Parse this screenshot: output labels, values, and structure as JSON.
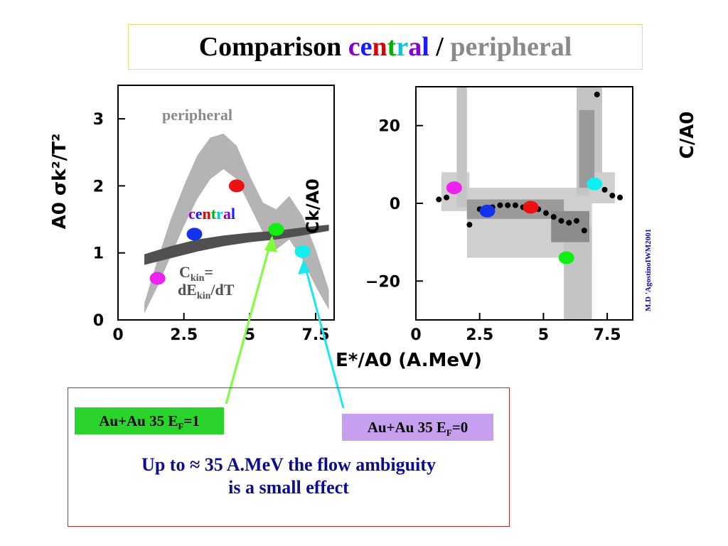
{
  "title": {
    "part1": "Comparison ",
    "central_letters": [
      {
        "ch": "c",
        "color": "#8800cc"
      },
      {
        "ch": "e",
        "color": "#1a1aff"
      },
      {
        "ch": "n",
        "color": "#e00000"
      },
      {
        "ch": "t",
        "color": "#00b000"
      },
      {
        "ch": "r",
        "color": "#00c8e0"
      },
      {
        "ch": "a",
        "color": "#8800cc"
      },
      {
        "ch": "l",
        "color": "#1a1aff"
      }
    ],
    "separator": " / ",
    "peripheral": "peripheral"
  },
  "colors": {
    "red": "#ee1111",
    "blue": "#1133ee",
    "green": "#11ee11",
    "cyan": "#11eeee",
    "magenta": "#ee22ee",
    "band": "#b4b4b4",
    "dark_band": "#505050"
  },
  "chart_data": [
    {
      "type": "scatter",
      "ylabel": "A0 σk²/T²",
      "xlim": [
        0,
        8.2
      ],
      "ylim": [
        0,
        3.5
      ],
      "xticks": [
        "0",
        "2.5",
        "5",
        "7.5"
      ],
      "yticks": [
        "0",
        "1",
        "2",
        "3"
      ],
      "annotations": {
        "peripheral": "peripheral",
        "central_letters": [
          {
            "ch": "c",
            "color": "#8800cc"
          },
          {
            "ch": "e",
            "color": "#1a1aff"
          },
          {
            "ch": "n",
            "color": "#e00000"
          },
          {
            "ch": "t",
            "color": "#00b000"
          },
          {
            "ch": "r",
            "color": "#00c8e0"
          },
          {
            "ch": "a",
            "color": "#8800cc"
          },
          {
            "ch": "l",
            "color": "#1a1aff"
          }
        ],
        "ckin_base": "C",
        "ckin_sub": "kin",
        "ckin_eq": "=",
        "de_base": "dE",
        "de_sub": "kin",
        "de_tail": "/dT"
      },
      "points": [
        {
          "x": 1.5,
          "y": 0.62,
          "color": "magenta"
        },
        {
          "x": 2.9,
          "y": 1.28,
          "color": "blue"
        },
        {
          "x": 4.5,
          "y": 2.0,
          "color": "red"
        },
        {
          "x": 6.0,
          "y": 1.35,
          "color": "green"
        },
        {
          "x": 7.0,
          "y": 1.02,
          "color": "cyan"
        }
      ],
      "band_peripheral": [
        [
          1.0,
          0.1,
          0.25
        ],
        [
          1.5,
          0.5,
          0.9
        ],
        [
          2.0,
          0.95,
          1.5
        ],
        [
          2.5,
          1.4,
          2.0
        ],
        [
          3.0,
          1.8,
          2.45
        ],
        [
          3.5,
          2.1,
          2.72
        ],
        [
          4.0,
          2.25,
          2.78
        ],
        [
          4.5,
          2.1,
          2.6
        ],
        [
          5.0,
          1.7,
          2.15
        ],
        [
          5.5,
          1.3,
          1.75
        ],
        [
          6.0,
          1.05,
          1.65
        ],
        [
          6.5,
          1.2,
          1.85
        ],
        [
          7.0,
          0.9,
          1.55
        ],
        [
          7.5,
          0.5,
          1.05
        ],
        [
          8.0,
          0.15,
          0.45
        ]
      ],
      "band_central": [
        [
          1.0,
          0.82,
          0.98
        ],
        [
          2.0,
          0.92,
          1.1
        ],
        [
          3.0,
          1.02,
          1.2
        ],
        [
          4.0,
          1.1,
          1.26
        ],
        [
          5.0,
          1.16,
          1.3
        ],
        [
          6.0,
          1.2,
          1.33
        ],
        [
          7.0,
          1.26,
          1.38
        ],
        [
          8.0,
          1.33,
          1.42
        ]
      ]
    },
    {
      "type": "scatter",
      "ylabel": "C/A0",
      "xlabel": "E*/A0 (A.MeV)",
      "xlim": [
        0,
        8.5
      ],
      "ylim": [
        -30,
        30
      ],
      "xticks": [
        "0",
        "2.5",
        "5",
        "7.5"
      ],
      "yticks": [
        "20",
        "0",
        "−20"
      ],
      "colored_points": [
        {
          "x": 1.5,
          "y": 4,
          "color": "magenta"
        },
        {
          "x": 2.8,
          "y": -2,
          "color": "blue"
        },
        {
          "x": 4.5,
          "y": -1,
          "color": "red"
        },
        {
          "x": 5.9,
          "y": -14,
          "color": "green"
        },
        {
          "x": 7.0,
          "y": 5,
          "color": "cyan"
        }
      ],
      "black_points": [
        {
          "x": 0.9,
          "y": 1
        },
        {
          "x": 1.2,
          "y": 1.5
        },
        {
          "x": 2.1,
          "y": -5.5
        },
        {
          "x": 2.5,
          "y": -1.5
        },
        {
          "x": 3.0,
          "y": -1
        },
        {
          "x": 3.3,
          "y": -0.5
        },
        {
          "x": 3.6,
          "y": -0.5
        },
        {
          "x": 3.9,
          "y": -0.5
        },
        {
          "x": 4.2,
          "y": -1
        },
        {
          "x": 4.8,
          "y": -1.5
        },
        {
          "x": 5.1,
          "y": -2.5
        },
        {
          "x": 5.4,
          "y": -3.5
        },
        {
          "x": 5.7,
          "y": -4.5
        },
        {
          "x": 6.0,
          "y": -5
        },
        {
          "x": 6.3,
          "y": -4.5
        },
        {
          "x": 6.6,
          "y": -7
        },
        {
          "x": 7.1,
          "y": 28
        },
        {
          "x": 7.4,
          "y": 3.5
        },
        {
          "x": 7.7,
          "y": 2
        },
        {
          "x": 8.0,
          "y": 1.5
        }
      ]
    }
  ],
  "labels": {
    "ef1": {
      "base": "Au+Au 35 E",
      "sub": "F",
      "tail": "=1"
    },
    "ef0": {
      "base": "Au+Au 35 E",
      "sub": "F",
      "tail": "=0"
    }
  },
  "conclusion": {
    "line1": "Up to ≈ 35 A.MeV the flow ambiguity",
    "line2": "is a small effect"
  },
  "credit": "M.D 'AgostinoIWM2001"
}
